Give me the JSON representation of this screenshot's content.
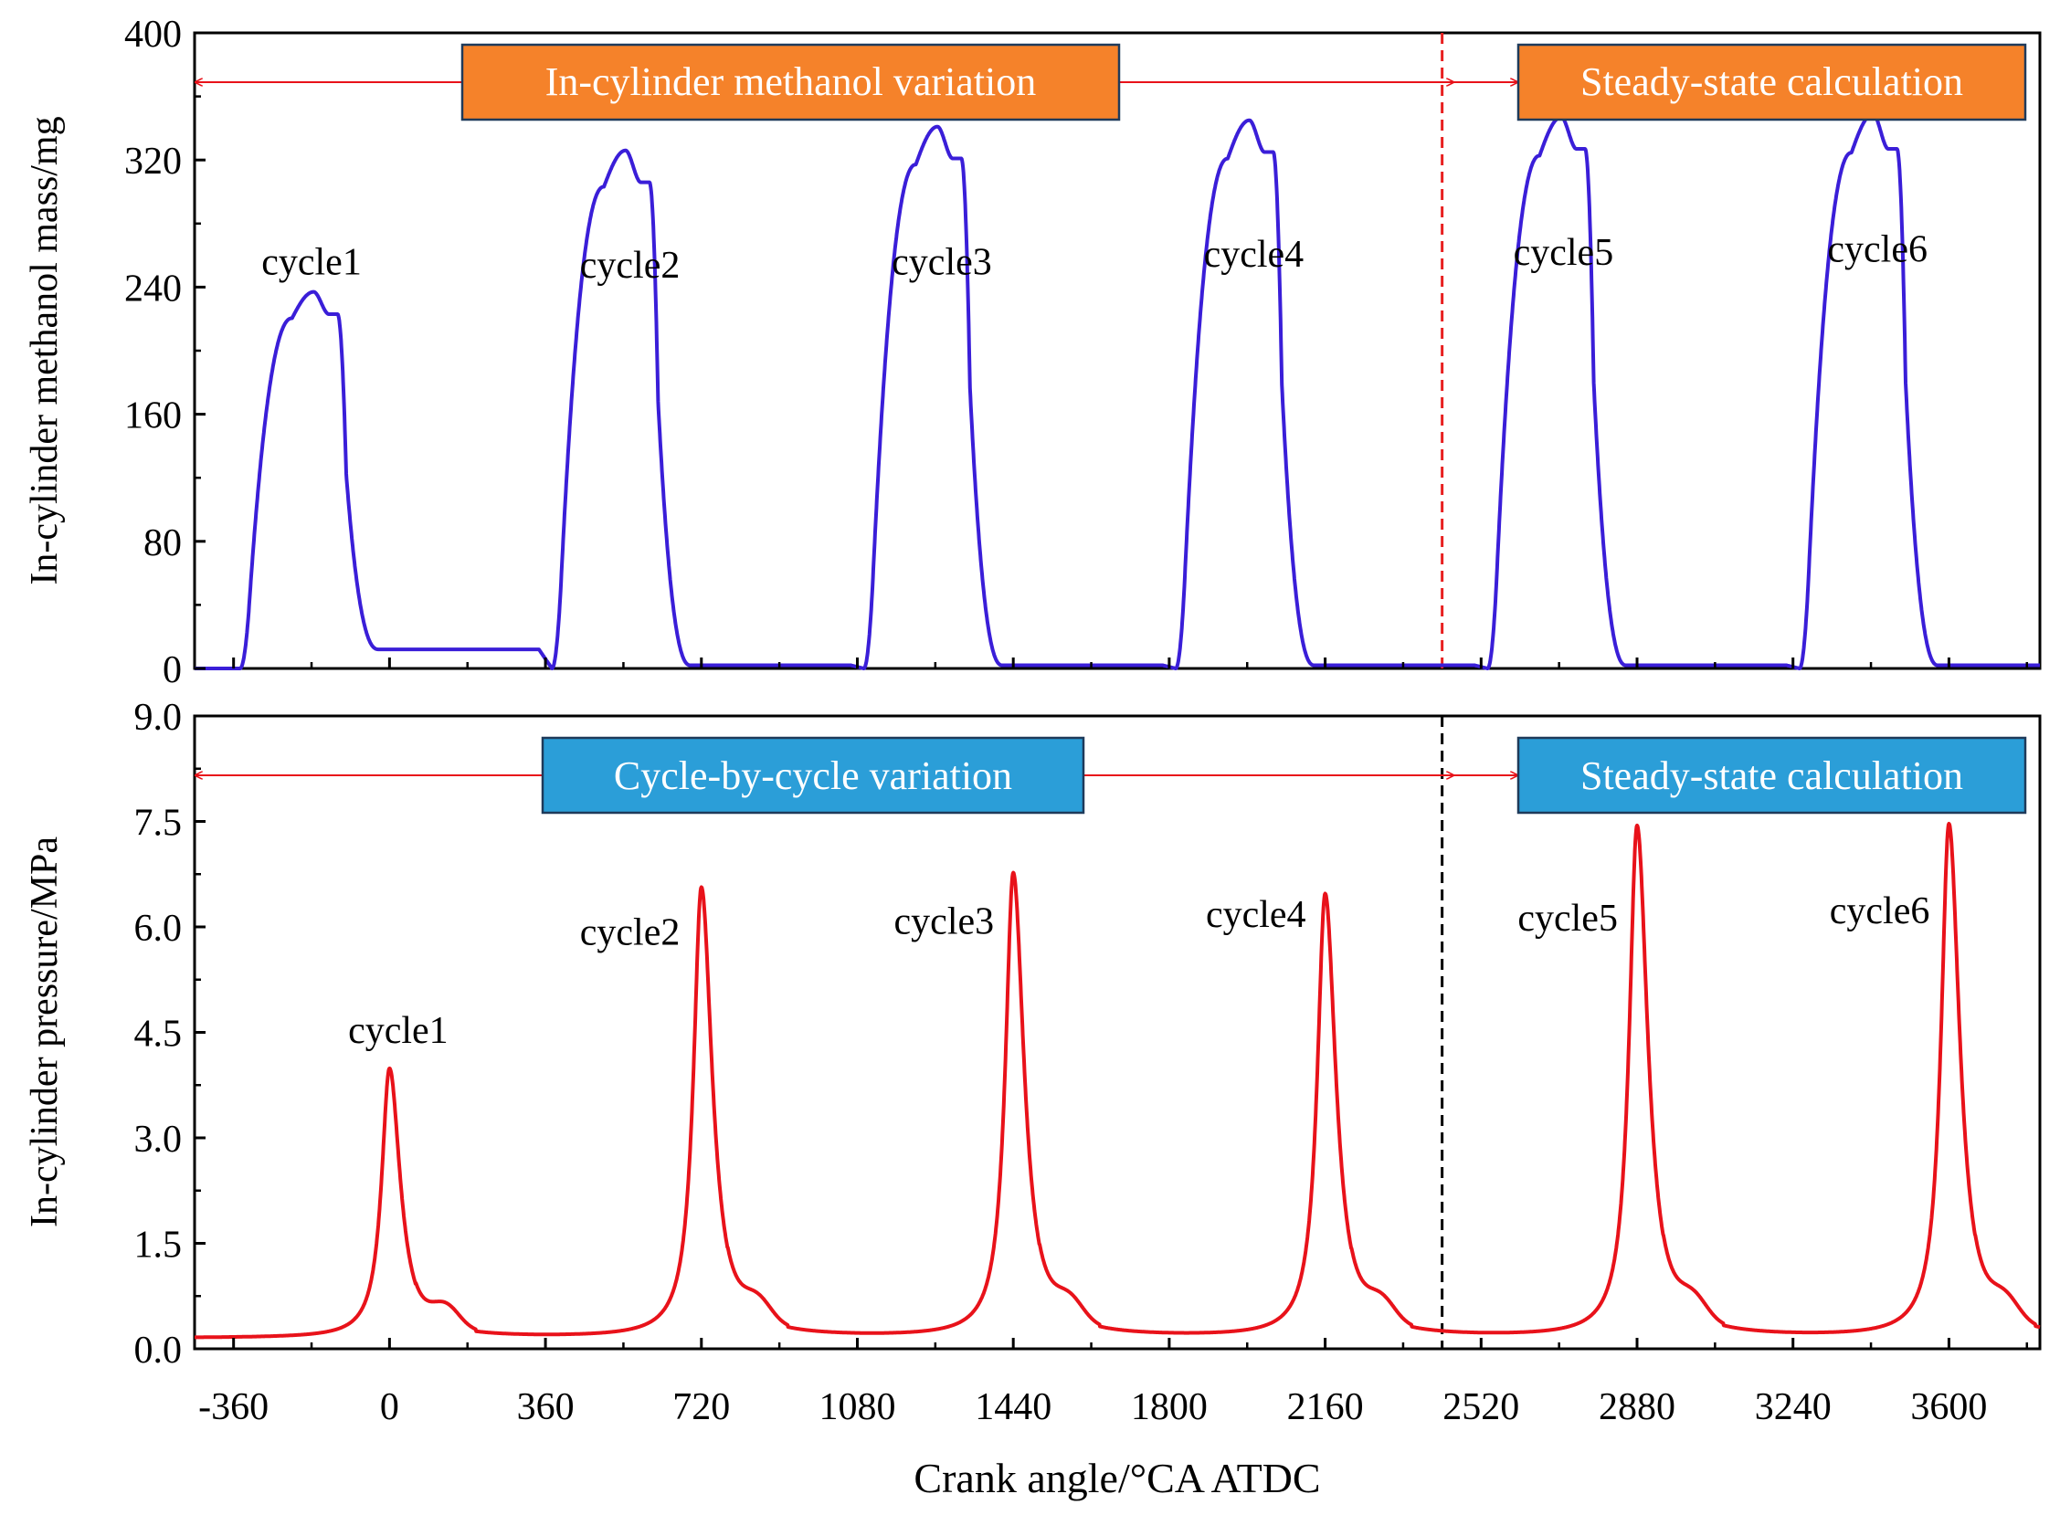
{
  "chart_data": [
    {
      "type": "line",
      "ylabel": "In-cylinder methanol mass/mg",
      "ylim": [
        0,
        400
      ],
      "yticks": [
        0,
        80,
        160,
        240,
        320,
        400
      ],
      "xlim": [
        -450,
        3810
      ],
      "line_color": "#3a1ed8",
      "divider_x": 2430,
      "divider_color": "#e82020",
      "banner_left": {
        "text": "In-cylinder methanol variation",
        "color": "#f5822a"
      },
      "banner_right": {
        "text": "Steady-state calculation",
        "color": "#f5822a"
      },
      "cycles": [
        {
          "label": "cycle1",
          "start": -345,
          "peak": 237,
          "plateau": 223,
          "low": 12,
          "label_x": -180,
          "label_y": 248
        },
        {
          "label": "cycle2",
          "start": 375,
          "peak": 326,
          "plateau": 306,
          "low": 2,
          "label_x": 555,
          "label_y": 246
        },
        {
          "label": "cycle3",
          "start": 1095,
          "peak": 341,
          "plateau": 321,
          "low": 2,
          "label_x": 1275,
          "label_y": 248
        },
        {
          "label": "cycle4",
          "start": 1815,
          "peak": 345,
          "plateau": 325,
          "low": 2,
          "label_x": 1995,
          "label_y": 253
        },
        {
          "label": "cycle5",
          "start": 2535,
          "peak": 347,
          "plateau": 327,
          "low": 2,
          "label_x": 2710,
          "label_y": 254
        },
        {
          "label": "cycle6",
          "start": 3255,
          "peak": 349,
          "plateau": 327,
          "low": 2,
          "label_x": 3435,
          "label_y": 256
        }
      ]
    },
    {
      "type": "line",
      "xlabel": "Crank angle/°CA ATDC",
      "ylabel": "In-cylinder pressure/MPa",
      "ylim": [
        0,
        9
      ],
      "yticks": [
        0.0,
        1.5,
        3.0,
        4.5,
        6.0,
        7.5,
        9.0
      ],
      "xlim": [
        -450,
        3810
      ],
      "xticks": [
        -360,
        0,
        360,
        720,
        1080,
        1440,
        1800,
        2160,
        2520,
        2880,
        3240,
        3600
      ],
      "line_color": "#e8121a",
      "divider_x": 2430,
      "divider_color": "#000000",
      "baseline": 0.15,
      "banner_left": {
        "text": "Cycle-by-cycle variation",
        "color": "#2b9ed8"
      },
      "banner_right": {
        "text": "Steady-state calculation",
        "color": "#2b9ed8"
      },
      "cycles": [
        {
          "label": "cycle1",
          "peak_x": 0,
          "peak": 3.98,
          "label_x": 20,
          "label_y": 4.35
        },
        {
          "label": "cycle2",
          "peak_x": 720,
          "peak": 6.55,
          "label_x": 555,
          "label_y": 5.75
        },
        {
          "label": "cycle3",
          "peak_x": 1440,
          "peak": 6.75,
          "label_x": 1280,
          "label_y": 5.9
        },
        {
          "label": "cycle4",
          "peak_x": 2160,
          "peak": 6.45,
          "label_x": 2000,
          "label_y": 6.0
        },
        {
          "label": "cycle5",
          "peak_x": 2880,
          "peak": 7.42,
          "label_x": 2720,
          "label_y": 5.95
        },
        {
          "label": "cycle6",
          "peak_x": 3600,
          "peak": 7.45,
          "label_x": 3440,
          "label_y": 6.05
        }
      ]
    }
  ]
}
